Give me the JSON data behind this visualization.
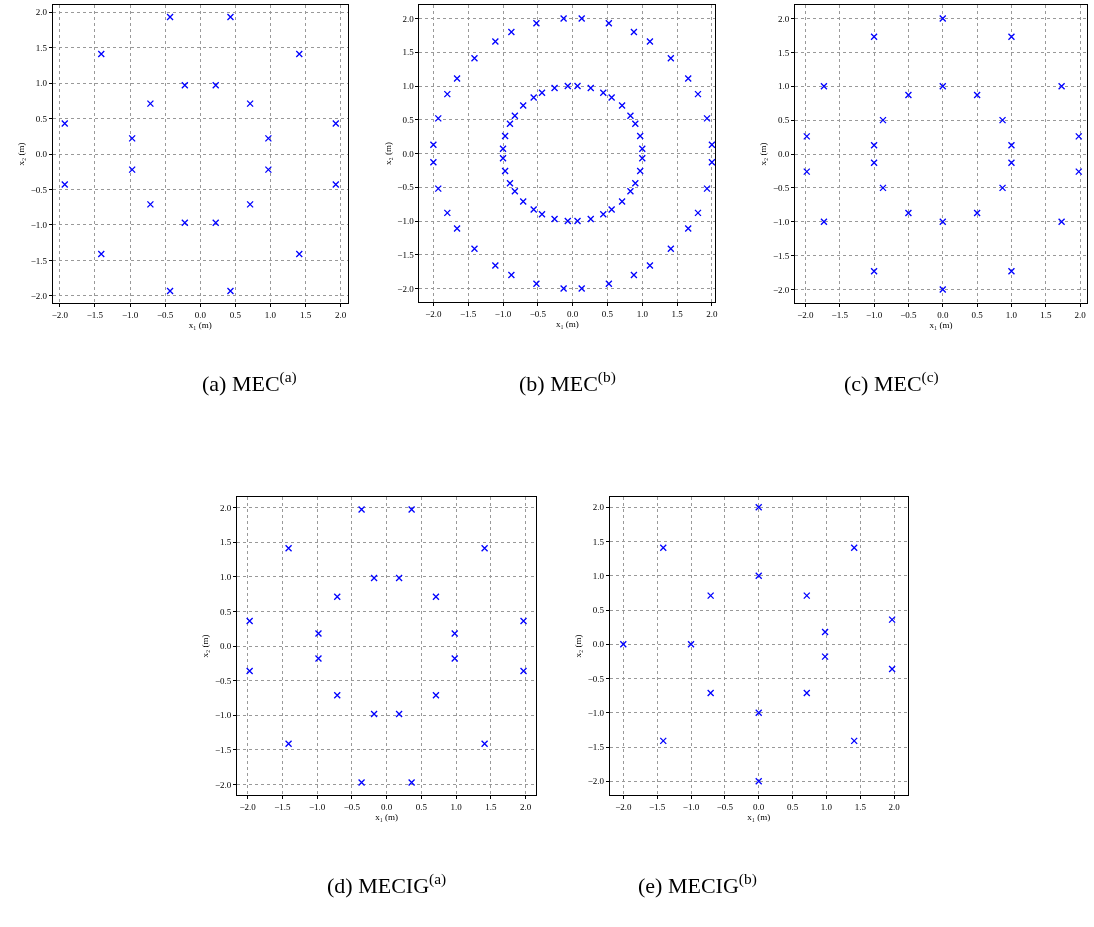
{
  "chart_data": [
    {
      "type": "scatter",
      "title": "(a) MEC$^{(a)}$",
      "xlabel": "x₁ (m)",
      "ylabel": "x₂ (m)",
      "marker": "cross",
      "grid": true,
      "series": [
        {
          "color": "#0000ff",
          "x": [
            0.43,
            1.41,
            1.93,
            0.22,
            0.71,
            0.97,
            -0.43,
            -1.41,
            -1.93,
            -0.22,
            -0.71,
            -0.97,
            -0.43,
            -1.41,
            -1.93,
            -0.22,
            -0.71,
            -0.97,
            0.43,
            1.41,
            1.93,
            0.22,
            0.71,
            0.97
          ],
          "values": [
            1.93,
            1.41,
            0.43,
            0.97,
            0.71,
            0.22,
            1.93,
            1.41,
            0.43,
            0.97,
            0.71,
            0.22,
            -1.93,
            -1.41,
            -0.43,
            -0.97,
            -0.71,
            -0.22,
            -1.93,
            -1.41,
            -0.43,
            -0.97,
            -0.71,
            -0.22
          ]
        }
      ],
      "xlim": [
        -2.1,
        2.1
      ],
      "ylim": [
        -2.1,
        2.1
      ],
      "xticks": [
        {
          "value": -2,
          "label": "−2.0"
        },
        {
          "value": -1.5,
          "label": "−1.5"
        },
        {
          "value": -1,
          "label": "−1.0"
        },
        {
          "value": -0.5,
          "label": "−0.5"
        },
        {
          "value": 0,
          "label": "0.0"
        },
        {
          "value": 0.5,
          "label": "0.5"
        },
        {
          "value": 1,
          "label": "1.0"
        },
        {
          "value": 1.5,
          "label": "1.5"
        },
        {
          "value": 2,
          "label": "2.0"
        }
      ],
      "yticks": [
        {
          "value": -2,
          "label": "−2.0"
        },
        {
          "value": -1.5,
          "label": "−1.5"
        },
        {
          "value": -1,
          "label": "−1.0"
        },
        {
          "value": -0.5,
          "label": "−0.5"
        },
        {
          "value": 0,
          "label": "0.0"
        },
        {
          "value": 0.5,
          "label": "0.5"
        },
        {
          "value": 1,
          "label": "1.0"
        },
        {
          "value": 1.5,
          "label": "1.5"
        },
        {
          "value": 2,
          "label": "2.0"
        }
      ]
    },
    {
      "type": "scatter",
      "title": "(b) MEC$^{(b)}$",
      "xlabel": "x₁ (m)",
      "ylabel": "x₂ (m)",
      "marker": "cross",
      "grid": true,
      "series": [
        {
          "color": "#0000ff",
          "x": [
            0.13,
            0.52,
            0.88,
            1.11,
            1.41,
            1.66,
            1.8,
            1.93,
            2.0,
            0.07,
            0.26,
            0.44,
            0.56,
            0.71,
            0.83,
            0.9,
            0.97,
            1.0,
            -0.13,
            -0.52,
            -0.88,
            -1.11,
            -1.41,
            -1.66,
            -1.8,
            -1.93,
            -2.0,
            -0.07,
            -0.26,
            -0.44,
            -0.56,
            -0.71,
            -0.83,
            -0.9,
            -0.97,
            -1.0,
            -0.13,
            -0.52,
            -0.88,
            -1.11,
            -1.41,
            -1.66,
            -1.8,
            -1.93,
            -2.0,
            -0.07,
            -0.26,
            -0.44,
            -0.56,
            -0.71,
            -0.83,
            -0.9,
            -0.97,
            -1.0,
            0.13,
            0.52,
            0.88,
            1.11,
            1.41,
            1.66,
            1.8,
            1.93,
            2.0,
            0.07,
            0.26,
            0.44,
            0.56,
            0.71,
            0.83,
            0.9,
            0.97,
            1.0
          ],
          "values": [
            2.0,
            1.93,
            1.8,
            1.66,
            1.41,
            1.11,
            0.88,
            0.52,
            0.13,
            1.0,
            0.97,
            0.9,
            0.83,
            0.71,
            0.56,
            0.44,
            0.26,
            0.07,
            2.0,
            1.93,
            1.8,
            1.66,
            1.41,
            1.11,
            0.88,
            0.52,
            0.13,
            1.0,
            0.97,
            0.9,
            0.83,
            0.71,
            0.56,
            0.44,
            0.26,
            0.07,
            -2.0,
            -1.93,
            -1.8,
            -1.66,
            -1.41,
            -1.11,
            -0.88,
            -0.52,
            -0.13,
            -1.0,
            -0.97,
            -0.9,
            -0.83,
            -0.71,
            -0.56,
            -0.44,
            -0.26,
            -0.07,
            -2.0,
            -1.93,
            -1.8,
            -1.66,
            -1.41,
            -1.11,
            -0.88,
            -0.52,
            -0.13,
            -1.0,
            -0.97,
            -0.9,
            -0.83,
            -0.71,
            -0.56,
            -0.44,
            -0.26,
            -0.07
          ]
        }
      ],
      "xlim": [
        -2.2,
        2.05
      ],
      "ylim": [
        -2.2,
        2.2
      ],
      "xticks": [
        {
          "value": -2,
          "label": "−2.0"
        },
        {
          "value": -1.5,
          "label": "−1.5"
        },
        {
          "value": -1,
          "label": "−1.0"
        },
        {
          "value": -0.5,
          "label": "−0.5"
        },
        {
          "value": 0,
          "label": "0.0"
        },
        {
          "value": 0.5,
          "label": "0.5"
        },
        {
          "value": 1,
          "label": "1.0"
        },
        {
          "value": 1.5,
          "label": "1.5"
        },
        {
          "value": 2,
          "label": "2.0"
        }
      ],
      "yticks": [
        {
          "value": -2,
          "label": "−2.0"
        },
        {
          "value": -1.5,
          "label": "−1.5"
        },
        {
          "value": -1,
          "label": "−1.0"
        },
        {
          "value": -0.5,
          "label": "−0.5"
        },
        {
          "value": 0,
          "label": "0.0"
        },
        {
          "value": 0.5,
          "label": "0.5"
        },
        {
          "value": 1,
          "label": "1.0"
        },
        {
          "value": 1.5,
          "label": "1.5"
        },
        {
          "value": 2,
          "label": "2.0"
        }
      ]
    },
    {
      "type": "scatter",
      "title": "(c) MEC$^{(c)}$",
      "xlabel": "x₁ (m)",
      "ylabel": "x₂ (m)",
      "marker": "cross",
      "grid": true,
      "series": [
        {
          "color": "#0000ff",
          "x": [
            0,
            1,
            1.73,
            1.98,
            1.98,
            1.73,
            1,
            0,
            -1,
            -1.73,
            -1.98,
            -1.98,
            -1.73,
            -1,
            0,
            0.5,
            0.87,
            1,
            1,
            0.87,
            0.5,
            0,
            -0.5,
            -0.87,
            -1,
            -1,
            -0.87,
            -0.5
          ],
          "values": [
            2,
            1.73,
            1,
            0.26,
            -0.26,
            -1,
            -1.73,
            -2,
            -1.73,
            -1,
            -0.26,
            0.26,
            1,
            1.73,
            1,
            0.87,
            0.5,
            0.13,
            -0.13,
            -0.5,
            -0.87,
            -1,
            -0.87,
            -0.5,
            -0.13,
            0.13,
            0.5,
            0.87
          ]
        }
      ],
      "xlim": [
        -2.15,
        2.1
      ],
      "ylim": [
        -2.2,
        2.2
      ],
      "xticks": [
        {
          "value": -2,
          "label": "−2.0"
        },
        {
          "value": -1.5,
          "label": "−1.5"
        },
        {
          "value": -1,
          "label": "−1.0"
        },
        {
          "value": -0.5,
          "label": "−0.5"
        },
        {
          "value": 0,
          "label": "0.0"
        },
        {
          "value": 0.5,
          "label": "0.5"
        },
        {
          "value": 1,
          "label": "1.0"
        },
        {
          "value": 1.5,
          "label": "1.5"
        },
        {
          "value": 2,
          "label": "2.0"
        }
      ],
      "yticks": [
        {
          "value": -2,
          "label": "−2.0"
        },
        {
          "value": -1.5,
          "label": "−1.5"
        },
        {
          "value": -1,
          "label": "−1.0"
        },
        {
          "value": -0.5,
          "label": "−0.5"
        },
        {
          "value": 0,
          "label": "0.0"
        },
        {
          "value": 0.5,
          "label": "0.5"
        },
        {
          "value": 1,
          "label": "1.0"
        },
        {
          "value": 1.5,
          "label": "1.5"
        },
        {
          "value": 2,
          "label": "2.0"
        }
      ]
    },
    {
      "type": "scatter",
      "title": "(d) MECIG$^{(a)}$",
      "xlabel": "x₁ (m)",
      "ylabel": "x₂ (m)",
      "marker": "cross",
      "grid": true,
      "series": [
        {
          "color": "#0000ff",
          "x": [
            0.36,
            1.41,
            1.97,
            0.18,
            0.71,
            0.98,
            -0.36,
            -1.41,
            -1.97,
            -0.18,
            -0.71,
            -0.98,
            -0.36,
            -1.41,
            -1.97,
            -0.18,
            -0.71,
            -0.98,
            0.36,
            1.41,
            1.97,
            0.18,
            0.71,
            0.98
          ],
          "values": [
            1.97,
            1.41,
            0.36,
            0.98,
            0.71,
            0.18,
            1.97,
            1.41,
            0.36,
            0.98,
            0.71,
            0.18,
            -1.97,
            -1.41,
            -0.36,
            -0.98,
            -0.71,
            -0.18,
            -1.97,
            -1.41,
            -0.36,
            -0.98,
            -0.71,
            -0.18
          ]
        }
      ],
      "xlim": [
        -2.15,
        2.15
      ],
      "ylim": [
        -2.15,
        2.15
      ],
      "xticks": [
        {
          "value": -2,
          "label": "−2.0"
        },
        {
          "value": -1.5,
          "label": "−1.5"
        },
        {
          "value": -1,
          "label": "−1.0"
        },
        {
          "value": -0.5,
          "label": "−0.5"
        },
        {
          "value": 0,
          "label": "0.0"
        },
        {
          "value": 0.5,
          "label": "0.5"
        },
        {
          "value": 1,
          "label": "1.0"
        },
        {
          "value": 1.5,
          "label": "1.5"
        },
        {
          "value": 2,
          "label": "2.0"
        }
      ],
      "yticks": [
        {
          "value": -2,
          "label": "−2.0"
        },
        {
          "value": -1.5,
          "label": "−1.5"
        },
        {
          "value": -1,
          "label": "−1.0"
        },
        {
          "value": -0.5,
          "label": "−0.5"
        },
        {
          "value": 0,
          "label": "0.0"
        },
        {
          "value": 0.5,
          "label": "0.5"
        },
        {
          "value": 1,
          "label": "1.0"
        },
        {
          "value": 1.5,
          "label": "1.5"
        },
        {
          "value": 2,
          "label": "2.0"
        }
      ]
    },
    {
      "type": "scatter",
      "title": "(e) MECIG$^{(b)}$",
      "xlabel": "x₁ (m)",
      "ylabel": "x₂ (m)",
      "marker": "cross",
      "grid": true,
      "series": [
        {
          "color": "#0000ff",
          "x": [
            0,
            0,
            1.41,
            0.71,
            0.98,
            1.97,
            1.97,
            0.98,
            0.71,
            1.41,
            0,
            0,
            -0.71,
            -1.41,
            -1,
            -2,
            -0.71,
            -1.41
          ],
          "values": [
            2,
            1,
            1.41,
            0.71,
            0.18,
            0.36,
            -0.36,
            -0.18,
            -0.71,
            -1.41,
            -1,
            -2,
            -0.71,
            -1.41,
            0,
            0,
            0.71,
            1.41
          ]
        }
      ],
      "xlim": [
        -2.2,
        2.2
      ],
      "ylim": [
        -2.2,
        2.15
      ],
      "xticks": [
        {
          "value": -2,
          "label": "−2.0"
        },
        {
          "value": -1.5,
          "label": "−1.5"
        },
        {
          "value": -1,
          "label": "−1.0"
        },
        {
          "value": -0.5,
          "label": "−0.5"
        },
        {
          "value": 0,
          "label": "0.0"
        },
        {
          "value": 0.5,
          "label": "0.5"
        },
        {
          "value": 1,
          "label": "1.0"
        },
        {
          "value": 1.5,
          "label": "1.5"
        },
        {
          "value": 2,
          "label": "2.0"
        }
      ],
      "yticks": [
        {
          "value": -2,
          "label": "−2.0"
        },
        {
          "value": -1.5,
          "label": "−1.5"
        },
        {
          "value": -1,
          "label": "−1.0"
        },
        {
          "value": -0.5,
          "label": "−0.5"
        },
        {
          "value": 0,
          "label": "0.0"
        },
        {
          "value": 0.5,
          "label": "0.5"
        },
        {
          "value": 1,
          "label": "1.0"
        },
        {
          "value": 1.5,
          "label": "1.5"
        },
        {
          "value": 2,
          "label": "2.0"
        }
      ]
    }
  ]
}
